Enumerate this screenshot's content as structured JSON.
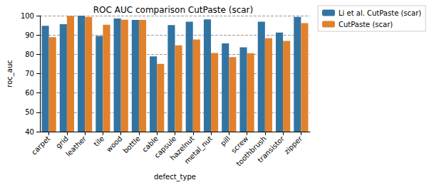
{
  "chart_data": {
    "type": "bar",
    "title": "ROC AUC comparison CutPaste (scar)",
    "x_label": "defect_type",
    "y_label": "roc_auc",
    "categories": [
      "carpet",
      "grid",
      "leather",
      "tile",
      "wood",
      "bottle",
      "cable",
      "capsule",
      "hazelnut",
      "metal_nut",
      "pill",
      "screw",
      "toothbrush",
      "transistor",
      "zipper"
    ],
    "series": [
      {
        "name": "Li et al. CutPaste (scar)",
        "color": "#3274a1",
        "values": [
          94.8,
          95.6,
          100.0,
          89.5,
          98.5,
          97.8,
          78.9,
          95.1,
          96.9,
          98.1,
          85.6,
          83.6,
          96.9,
          91.3,
          99.4
        ]
      },
      {
        "name": "CutPaste (scar)",
        "color": "#e1812c",
        "values": [
          88.9,
          99.9,
          99.4,
          95.3,
          97.9,
          97.8,
          75.1,
          84.6,
          87.7,
          80.7,
          78.6,
          80.6,
          88.3,
          86.9,
          96.1
        ]
      }
    ],
    "ylim": [
      40,
      100
    ],
    "yticks": [
      40,
      50,
      60,
      70,
      80,
      90,
      100
    ],
    "grid": true,
    "legend": "right"
  }
}
